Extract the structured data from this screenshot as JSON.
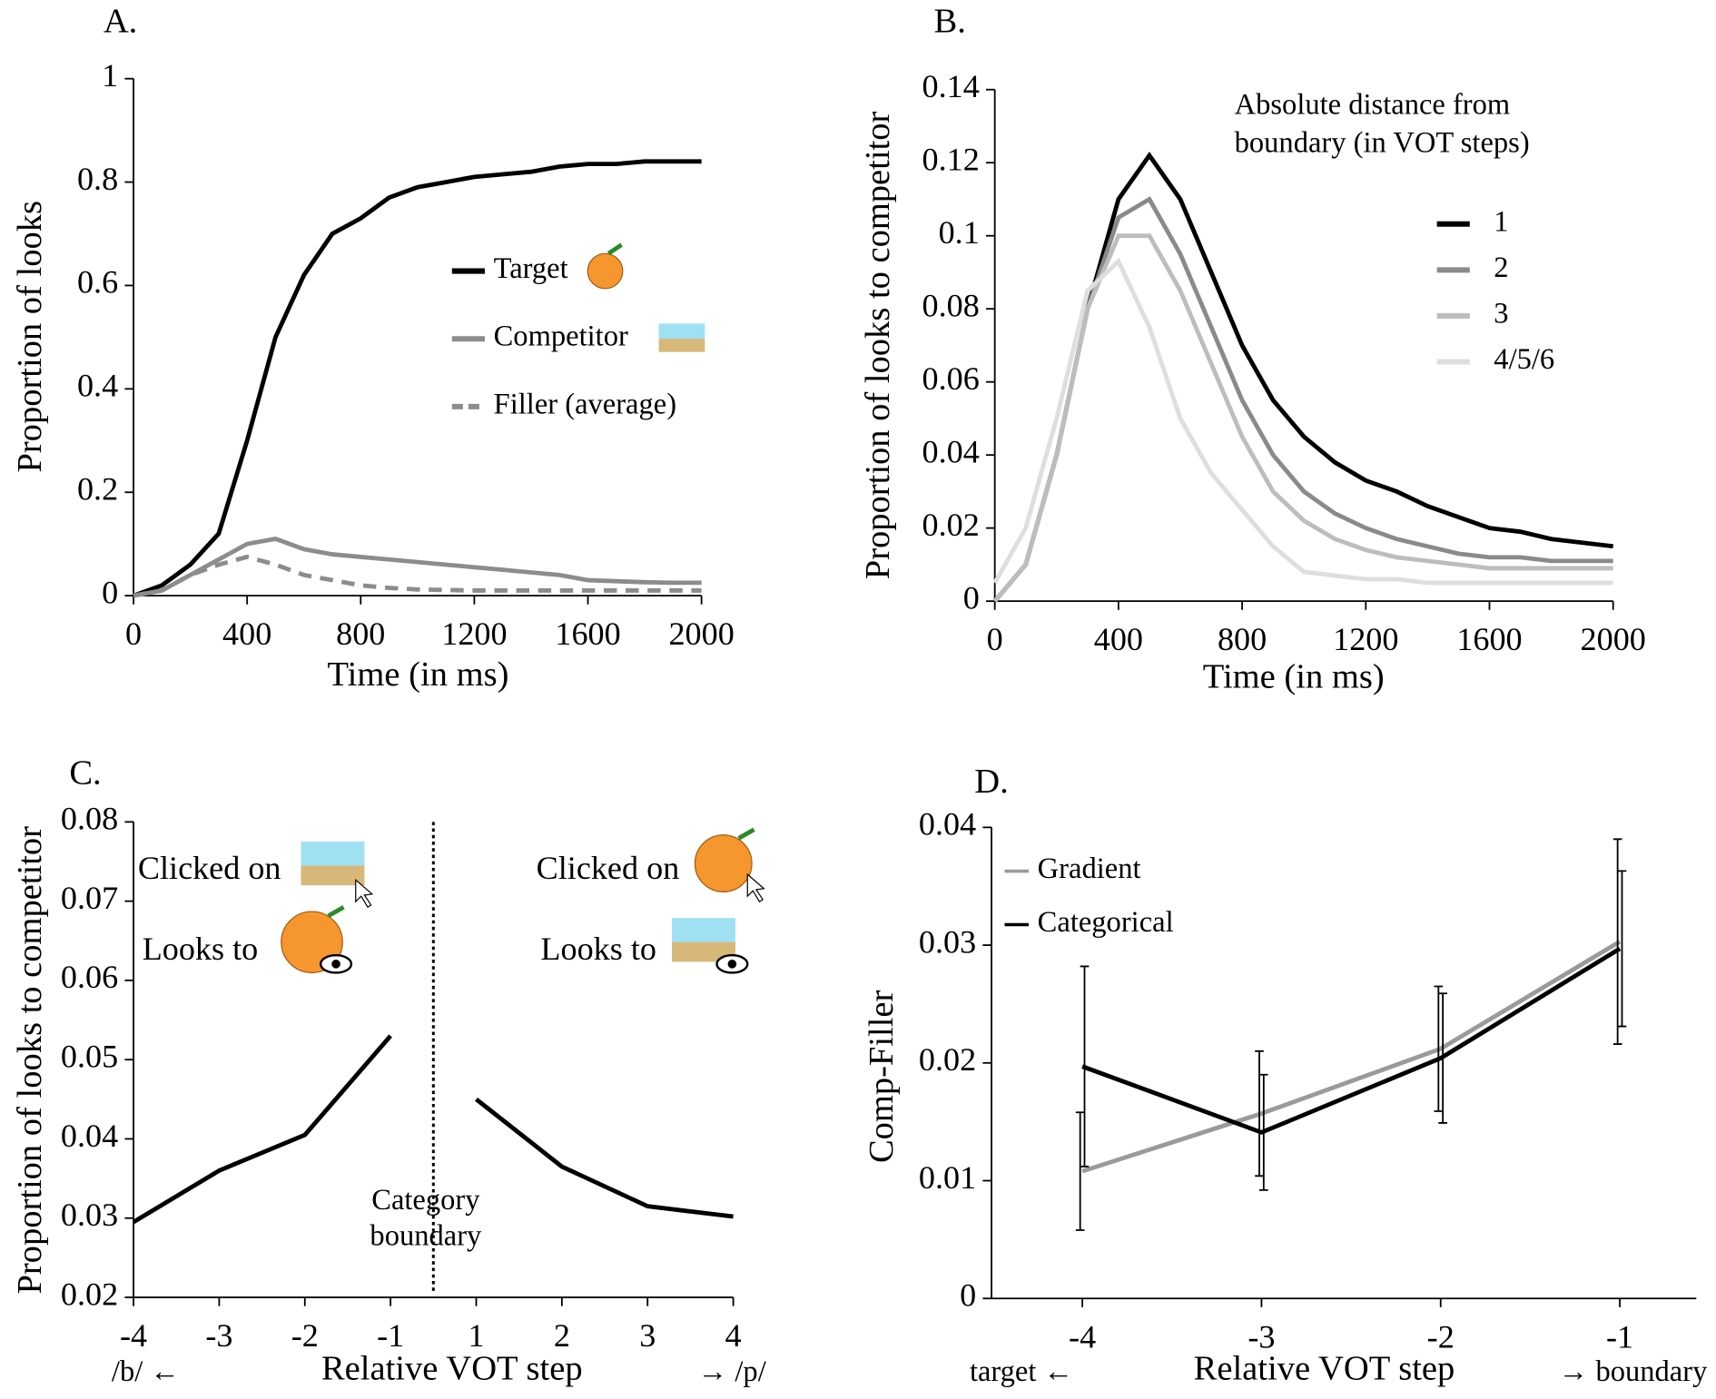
{
  "chart_data": [
    {
      "type": "line",
      "title": "A.",
      "xlabel": "Time (in ms)",
      "ylabel": "Proportion of looks",
      "x": [
        0,
        100,
        200,
        300,
        400,
        500,
        600,
        700,
        800,
        900,
        1000,
        1100,
        1200,
        1300,
        1400,
        1500,
        1600,
        1700,
        1800,
        1900,
        2000
      ],
      "series": [
        {
          "name": "Target",
          "color": "#000000",
          "values": [
            0,
            0.02,
            0.06,
            0.12,
            0.3,
            0.5,
            0.62,
            0.7,
            0.73,
            0.77,
            0.79,
            0.8,
            0.81,
            0.815,
            0.82,
            0.83,
            0.835,
            0.835,
            0.84,
            0.84,
            0.84
          ]
        },
        {
          "name": "Competitor",
          "color": "#8c8c8c",
          "values": [
            0,
            0.01,
            0.04,
            0.07,
            0.1,
            0.11,
            0.09,
            0.08,
            0.075,
            0.07,
            0.065,
            0.06,
            0.055,
            0.05,
            0.045,
            0.04,
            0.03,
            0.028,
            0.026,
            0.025,
            0.025
          ]
        },
        {
          "name": "Filler (average)",
          "color": "#8c8c8c",
          "dashed": true,
          "values": [
            0,
            0.01,
            0.04,
            0.06,
            0.075,
            0.06,
            0.04,
            0.03,
            0.02,
            0.015,
            0.012,
            0.011,
            0.01,
            0.01,
            0.01,
            0.01,
            0.01,
            0.01,
            0.01,
            0.01,
            0.01
          ]
        }
      ],
      "xlim": [
        0,
        2000
      ],
      "xticks": [
        0,
        400,
        800,
        1200,
        1600,
        2000
      ],
      "ylim": [
        0,
        1
      ],
      "yticks": [
        0,
        0.2,
        0.4,
        0.6,
        0.8,
        1
      ]
    },
    {
      "type": "line",
      "title": "B.",
      "xlabel": "Time (in ms)",
      "ylabel": "Proportion of looks to competitor",
      "legend_title": [
        "Absolute distance from",
        "boundary (in VOT steps)"
      ],
      "x": [
        0,
        100,
        200,
        300,
        400,
        500,
        600,
        700,
        800,
        900,
        1000,
        1100,
        1200,
        1300,
        1400,
        1500,
        1600,
        1700,
        1800,
        1900,
        2000
      ],
      "series": [
        {
          "name": "1",
          "color": "#000000",
          "values": [
            0,
            0.01,
            0.04,
            0.08,
            0.11,
            0.122,
            0.11,
            0.09,
            0.07,
            0.055,
            0.045,
            0.038,
            0.033,
            0.03,
            0.026,
            0.023,
            0.02,
            0.019,
            0.017,
            0.016,
            0.015
          ]
        },
        {
          "name": "2",
          "color": "#8a8a8a",
          "values": [
            0,
            0.01,
            0.04,
            0.08,
            0.105,
            0.11,
            0.095,
            0.075,
            0.055,
            0.04,
            0.03,
            0.024,
            0.02,
            0.017,
            0.015,
            0.013,
            0.012,
            0.012,
            0.011,
            0.011,
            0.011
          ]
        },
        {
          "name": "3",
          "color": "#bdbdbd",
          "values": [
            0,
            0.01,
            0.04,
            0.08,
            0.1,
            0.1,
            0.085,
            0.065,
            0.045,
            0.03,
            0.022,
            0.017,
            0.014,
            0.012,
            0.011,
            0.01,
            0.009,
            0.009,
            0.009,
            0.009,
            0.009
          ]
        },
        {
          "name": "4/5/6",
          "color": "#dedede",
          "values": [
            0.005,
            0.02,
            0.05,
            0.085,
            0.093,
            0.075,
            0.05,
            0.035,
            0.025,
            0.015,
            0.008,
            0.007,
            0.006,
            0.006,
            0.005,
            0.005,
            0.005,
            0.005,
            0.005,
            0.005,
            0.005
          ]
        }
      ],
      "xlim": [
        0,
        2000
      ],
      "xticks": [
        0,
        400,
        800,
        1200,
        1600,
        2000
      ],
      "ylim": [
        0,
        0.14
      ],
      "yticks": [
        0,
        0.02,
        0.04,
        0.06,
        0.08,
        0.1,
        0.12,
        0.14
      ]
    },
    {
      "type": "line",
      "title": "C.",
      "xlabel": "Relative VOT step",
      "ylabel": "Proportion of looks to competitor",
      "categories": [
        "-4",
        "-3",
        "-2",
        "-1",
        "1",
        "2",
        "3",
        "4"
      ],
      "values": [
        0.0295,
        0.036,
        0.0405,
        0.053,
        0.045,
        0.0365,
        0.0315,
        0.0302
      ],
      "color": "#000000",
      "boundary": {
        "after": "-1",
        "label": [
          "Category",
          "boundary"
        ]
      },
      "annotations": {
        "left": [
          "Clicked on",
          "Looks to"
        ],
        "right": [
          "Clicked on",
          "Looks to"
        ]
      },
      "x_ends": [
        "/b/ ←",
        "→ /p/"
      ],
      "ylim": [
        0.02,
        0.08
      ],
      "yticks": [
        0.02,
        0.03,
        0.04,
        0.05,
        0.06,
        0.07,
        0.08
      ]
    },
    {
      "type": "line",
      "title": "D.",
      "xlabel": "Relative VOT step",
      "ylabel": "Comp-Filler",
      "categories": [
        "-4",
        "-3",
        "-2",
        "-1"
      ],
      "series": [
        {
          "name": "Gradient",
          "color": "#9a9a9a",
          "values": [
            0.0108,
            0.0157,
            0.0212,
            0.0303
          ],
          "errors": [
            0.005,
            0.0053,
            0.0053,
            0.0087
          ]
        },
        {
          "name": "Categorical",
          "color": "#000000",
          "values": [
            0.0197,
            0.0141,
            0.0204,
            0.0297
          ],
          "errors": [
            0.0085,
            0.0049,
            0.0055,
            0.0066
          ]
        }
      ],
      "x_ends": [
        "target ←",
        "→ boundary"
      ],
      "ylim": [
        0,
        0.04
      ],
      "yticks": [
        0,
        0.01,
        0.02,
        0.03,
        0.04
      ]
    }
  ]
}
